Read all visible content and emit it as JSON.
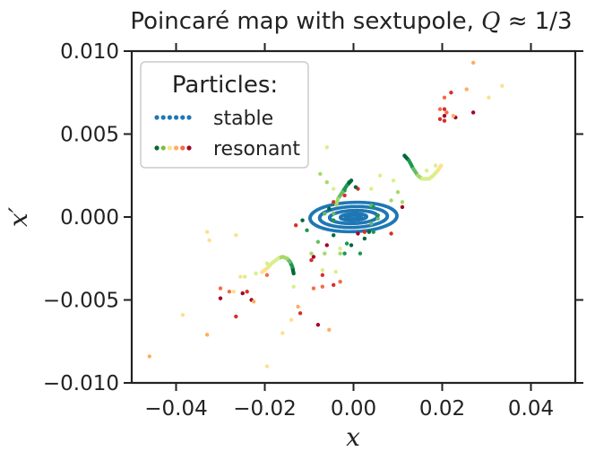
{
  "chart_data": {
    "type": "scatter",
    "title": "Poincaré map with sextupole, Q ≈ 1/3",
    "title_parts": {
      "text": "Poincaré map with sextupole, ",
      "var": "Q",
      "rest": " ≈ 1/3"
    },
    "xlabel": "x",
    "ylabel": "x′",
    "xlim": [
      -0.05,
      0.05
    ],
    "ylim": [
      -0.01,
      0.01
    ],
    "xticks": [
      -0.04,
      -0.02,
      0.0,
      0.02,
      0.04
    ],
    "xtick_labels": [
      "−0.04",
      "−0.02",
      "0.00",
      "0.02",
      "0.04"
    ],
    "yticks": [
      -0.01,
      -0.005,
      0.0,
      0.005,
      0.01
    ],
    "ytick_labels": [
      "−0.010",
      "−0.005",
      "0.000",
      "0.005",
      "0.010"
    ],
    "grid": false,
    "legend": {
      "title": "Particles:",
      "placement": "top-left",
      "entries": [
        {
          "label": "stable",
          "colors": [
            "#1f77b4",
            "#1f77b4",
            "#1f77b4",
            "#1f77b4",
            "#1f77b4",
            "#1f77b4"
          ]
        },
        {
          "label": "resonant",
          "colors": [
            "#006837",
            "#7fbc41",
            "#fee08b",
            "#fdae61",
            "#f46d43",
            "#a50026"
          ]
        }
      ]
    },
    "stable_series": {
      "name": "stable",
      "color": "#1f77b4",
      "tilt": 0.205,
      "ellipses": [
        {
          "a": 0.01,
          "b": 0.0009,
          "n": 130
        },
        {
          "a": 0.0078,
          "b": 0.00064,
          "n": 110
        },
        {
          "a": 0.0055,
          "b": 0.0004,
          "n": 90
        },
        {
          "a": 0.003,
          "b": 0.0002,
          "n": 70
        },
        {
          "a": 0.0018,
          "b": 0.00011,
          "n": 55
        }
      ]
    },
    "resonant_series": [
      {
        "color": "#a50026",
        "points": [
          [
            -0.03,
            -0.0049
          ],
          [
            -0.025,
            -0.0046
          ],
          [
            -0.023,
            -0.005
          ],
          [
            0.0205,
            0.0061
          ],
          [
            0.023,
            0.006
          ],
          [
            0.027,
            0.0063
          ],
          [
            -0.009,
            -0.0024
          ],
          [
            -0.006,
            -0.0017
          ],
          [
            0.011,
            0.0006
          ],
          [
            -0.008,
            -0.0065
          ],
          [
            0.001,
            -0.001
          ]
        ]
      },
      {
        "color": "#d73027",
        "points": [
          [
            -0.024,
            -0.0045
          ],
          [
            -0.0265,
            -0.006
          ],
          [
            -0.012,
            -0.0058
          ],
          [
            -0.007,
            -0.0035
          ],
          [
            -0.0045,
            -0.0041
          ],
          [
            0.0195,
            0.0059
          ],
          [
            0.0205,
            0.0058
          ],
          [
            0.022,
            0.0075
          ],
          [
            0.0205,
            0.0065
          ],
          [
            -0.0045,
            0.0009
          ],
          [
            0.0025,
            -0.0009
          ],
          [
            -0.002,
            0.0013
          ],
          [
            -0.002,
            0.0017
          ],
          [
            0.001,
            0.0017
          ],
          [
            -0.0095,
            -0.0026
          ],
          [
            -0.013,
            -0.0005
          ],
          [
            0.0085,
            -0.001
          ]
        ]
      },
      {
        "color": "#f46d43",
        "points": [
          [
            -0.03,
            -0.0043
          ],
          [
            -0.028,
            -0.0045
          ],
          [
            -0.0195,
            -0.0035
          ],
          [
            0.0205,
            0.0072
          ],
          [
            0.0195,
            0.0065
          ],
          [
            0.021,
            0.0063
          ],
          [
            -0.009,
            -0.0043
          ],
          [
            -0.007,
            -0.0042
          ],
          [
            -0.003,
            -0.0039
          ]
        ]
      },
      {
        "color": "#fdae61",
        "points": [
          [
            -0.046,
            -0.0084
          ],
          [
            -0.033,
            -0.0071
          ],
          [
            -0.0225,
            -0.0051
          ],
          [
            -0.0125,
            -0.0054
          ],
          [
            0.027,
            0.0093
          ],
          [
            0.0255,
            0.0077
          ],
          [
            0.0225,
            0.0061
          ],
          [
            -0.0055,
            -0.0068
          ]
        ]
      },
      {
        "color": "#fee08b",
        "points": [
          [
            -0.033,
            -0.0009
          ],
          [
            -0.0325,
            -0.0014
          ],
          [
            -0.0265,
            -0.0011
          ],
          [
            -0.0385,
            -0.0059
          ],
          [
            -0.0195,
            -0.009
          ],
          [
            -0.016,
            -0.007
          ],
          [
            0.0335,
            0.0079
          ],
          [
            0.0305,
            0.0072
          ],
          [
            -0.0255,
            -0.0036
          ],
          [
            -0.027,
            -0.0045
          ],
          [
            -0.014,
            -0.0062
          ]
        ]
      },
      {
        "color": "#d9ef8b",
        "points": [
          [
            -0.0195,
            -0.0028
          ],
          [
            -0.022,
            -0.0034
          ],
          [
            -0.0245,
            -0.0036
          ],
          [
            -0.0135,
            -0.0042
          ],
          [
            0.0185,
            0.0031
          ],
          [
            0.0165,
            0.0028
          ],
          [
            -0.006,
            0.0042
          ],
          [
            -0.003,
            -0.0019
          ],
          [
            0.006,
            0.0025
          ],
          [
            0.004,
            0.0017
          ],
          [
            -0.007,
            -0.0032
          ],
          [
            -0.004,
            -0.0033
          ],
          [
            0.009,
            0.0022
          ],
          [
            -0.0045,
            0.0017
          ]
        ]
      },
      {
        "color": "#a6d96a",
        "points": [
          [
            -0.0095,
            -0.0022
          ],
          [
            -0.0065,
            -0.0022
          ],
          [
            0.0085,
            0.001
          ],
          [
            -0.0075,
            0.0026
          ],
          [
            0.011,
            0.0009
          ],
          [
            0.01,
            0.0015
          ],
          [
            -0.006,
            0.0021
          ],
          [
            -0.003,
            -0.0022
          ]
        ]
      },
      {
        "color": "#66bd63",
        "points": [
          [
            -0.0065,
            0.0002
          ],
          [
            -0.0045,
            0.0002
          ],
          [
            0.004,
            0.0007
          ],
          [
            0.004,
            -0.0004
          ],
          [
            0.0055,
            -0.0001
          ],
          [
            -0.008,
            -0.0015
          ]
        ]
      },
      {
        "color": "#1a9850",
        "points": [
          [
            -0.002,
            0.0016
          ],
          [
            -0.001,
            0.0021
          ],
          [
            0.0045,
            0.0006
          ],
          [
            0.0055,
            0.0001
          ],
          [
            0.0045,
            -0.0009
          ],
          [
            -0.0045,
            -0.0002
          ],
          [
            -0.002,
            -0.0022
          ],
          [
            -0.0105,
            -0.0008
          ],
          [
            -0.0015,
            -0.0016
          ],
          [
            0.0015,
            -0.0022
          ]
        ]
      },
      {
        "color": "#006837",
        "points": [
          [
            -0.0115,
            -0.0002
          ],
          [
            -0.0055,
            0.0005
          ],
          [
            -0.0045,
            -0.0011
          ],
          [
            0.0025,
            -0.0013
          ],
          [
            0.0035,
            -0.0009
          ],
          [
            -0.0005,
            -0.0017
          ],
          [
            0.0005,
            0.0018
          ]
        ]
      }
    ],
    "resonant_arcs": [
      {
        "points": [
          [
            0.0115,
            0.0037
          ],
          [
            0.0125,
            0.0034
          ],
          [
            0.0135,
            0.0029
          ],
          [
            0.0145,
            0.0025
          ],
          [
            0.0155,
            0.0023
          ],
          [
            0.017,
            0.0023
          ],
          [
            0.018,
            0.0025
          ],
          [
            0.019,
            0.0028
          ],
          [
            0.02,
            0.0032
          ]
        ],
        "colors": [
          "#006837",
          "#1a9850",
          "#66bd63",
          "#a6d96a",
          "#d9ef8b",
          "#d9ef8b",
          "#d9ef8b",
          "#fee08b",
          "#fee08b"
        ]
      },
      {
        "points": [
          [
            -0.0005,
            0.0022
          ],
          [
            -0.0015,
            0.0019
          ],
          [
            -0.0025,
            0.0015
          ],
          [
            -0.0035,
            0.0011
          ],
          [
            -0.004,
            0.0006
          ]
        ],
        "colors": [
          "#006837",
          "#1a9850",
          "#66bd63",
          "#a6d96a",
          "#d9ef8b"
        ]
      },
      {
        "points": [
          [
            -0.0135,
            -0.0034
          ],
          [
            -0.0138,
            -0.003
          ],
          [
            -0.0143,
            -0.0027
          ],
          [
            -0.015,
            -0.0025
          ],
          [
            -0.016,
            -0.0024
          ],
          [
            -0.017,
            -0.0025
          ],
          [
            -0.0185,
            -0.0028
          ],
          [
            -0.0195,
            -0.0031
          ],
          [
            -0.021,
            -0.0034
          ]
        ],
        "colors": [
          "#006837",
          "#1a9850",
          "#66bd63",
          "#a6d96a",
          "#a6d96a",
          "#d9ef8b",
          "#d9ef8b",
          "#fee08b",
          "#fee08b"
        ]
      }
    ]
  }
}
